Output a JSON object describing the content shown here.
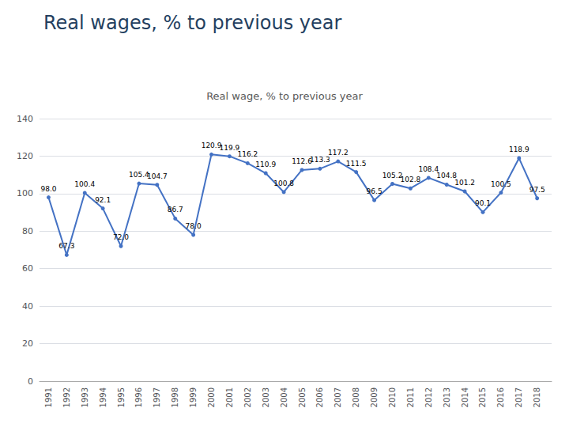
{
  "chart_data": {
    "type": "line",
    "title": "Real wages, % to previous year",
    "subtitle": "Real wage, % to previous year",
    "x": [
      1991,
      1992,
      1993,
      1994,
      1995,
      1996,
      1997,
      1998,
      1999,
      2000,
      2001,
      2002,
      2003,
      2004,
      2005,
      2006,
      2007,
      2008,
      2009,
      2010,
      2011,
      2012,
      2013,
      2014,
      2015,
      2016,
      2017,
      2018
    ],
    "values": [
      98.0,
      67.3,
      100.4,
      92.1,
      72.0,
      105.4,
      104.7,
      86.7,
      78.0,
      120.9,
      119.9,
      116.2,
      110.9,
      100.8,
      112.6,
      113.3,
      117.2,
      111.5,
      96.5,
      105.2,
      102.8,
      108.4,
      104.8,
      101.2,
      90.1,
      100.5,
      118.9,
      97.5
    ],
    "value_labels": [
      "98.0",
      "67.3",
      "100.4",
      "92.1",
      "72.0",
      "105.4",
      "104.7",
      "86.7",
      "78.0",
      "120.9",
      "119.9",
      "116.2",
      "110.9",
      "100.8",
      "112.6",
      "113.3",
      "117.2",
      "111.5",
      "96.5",
      "105.2",
      "102.8",
      "108.4",
      "104.8",
      "101.2",
      "90.1",
      "100.5",
      "118.9",
      "97.5"
    ],
    "color": "#4472C4",
    "marker": "circle",
    "xlim": [
      1990.5,
      2018.8
    ],
    "xticks": [
      1991,
      1992,
      1993,
      1994,
      1995,
      1996,
      1997,
      1998,
      1999,
      2000,
      2001,
      2002,
      2003,
      2004,
      2005,
      2006,
      2007,
      2008,
      2009,
      2010,
      2011,
      2012,
      2013,
      2014,
      2015,
      2016,
      2017,
      2018
    ],
    "ylim": [
      0,
      140
    ],
    "yticks": [
      0,
      20,
      40,
      60,
      80,
      100,
      120,
      140
    ],
    "grid": true,
    "data_labels": true
  }
}
